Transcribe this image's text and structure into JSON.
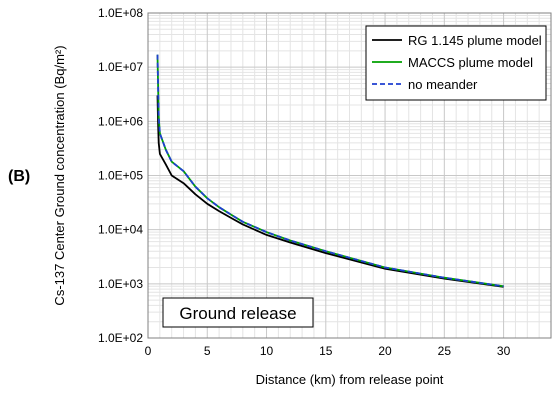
{
  "panel_label": "(B)",
  "chart_data": {
    "type": "line",
    "title": "",
    "xlabel": "Distance (km) from release point",
    "ylabel": "Cs-137 Center Ground concentration (Bq/m²)",
    "x_scale": "linear",
    "y_scale": "log",
    "xlim": [
      0,
      34
    ],
    "ylim": [
      100,
      100000000
    ],
    "x_ticks": [
      0,
      5,
      10,
      15,
      20,
      25,
      30
    ],
    "x_tick_labels": [
      "0",
      "5",
      "10",
      "15",
      "20",
      "25",
      "30"
    ],
    "y_ticks": [
      100,
      1000,
      10000,
      100000,
      1000000,
      10000000,
      100000000
    ],
    "y_tick_labels": [
      "1.0E+02",
      "1.0E+03",
      "1.0E+04",
      "1.0E+05",
      "1.0E+06",
      "1.0E+07",
      "1.0E+08"
    ],
    "grid": true,
    "minor_grid": true,
    "legend_position": "top-right",
    "annotation": "Ground release",
    "series": [
      {
        "name": "RG 1.145 plume model",
        "color": "#000000",
        "style": "solid",
        "x": [
          0.8,
          0.85,
          0.9,
          1.0,
          1.5,
          2.0,
          3.0,
          4.0,
          5.0,
          6.0,
          7.0,
          8.0,
          10.0,
          12.0,
          15.0,
          20.0,
          25.0,
          30.0
        ],
        "y": [
          3000000,
          900000,
          400000,
          250000,
          160000,
          100000,
          72000,
          45000,
          30000,
          22000,
          16500,
          12500,
          8000,
          5800,
          3700,
          1900,
          1250,
          880
        ]
      },
      {
        "name": "MACCS plume model",
        "color": "#00a000",
        "style": "solid",
        "x": [
          0.8,
          0.85,
          0.9,
          1.0,
          1.5,
          2.0,
          3.0,
          4.0,
          5.0,
          6.0,
          7.0,
          8.0,
          10.0,
          12.0,
          15.0,
          20.0,
          25.0,
          30.0
        ],
        "y": [
          17000000,
          4500000,
          1200000,
          600000,
          300000,
          180000,
          120000,
          62000,
          38000,
          26000,
          19000,
          14000,
          9000,
          6300,
          4000,
          2000,
          1300,
          900
        ]
      },
      {
        "name": "no meander",
        "color": "#1f3fd0",
        "style": "dashed",
        "x": [
          0.8,
          0.85,
          0.9,
          1.0,
          1.5,
          2.0,
          3.0,
          4.0,
          5.0,
          6.0,
          7.0,
          8.0,
          10.0,
          12.0,
          15.0,
          20.0,
          25.0,
          30.0
        ],
        "y": [
          17000000,
          4500000,
          1200000,
          600000,
          300000,
          180000,
          120000,
          62000,
          38000,
          26000,
          19000,
          14000,
          9000,
          6300,
          4000,
          2000,
          1300,
          900
        ]
      }
    ]
  }
}
